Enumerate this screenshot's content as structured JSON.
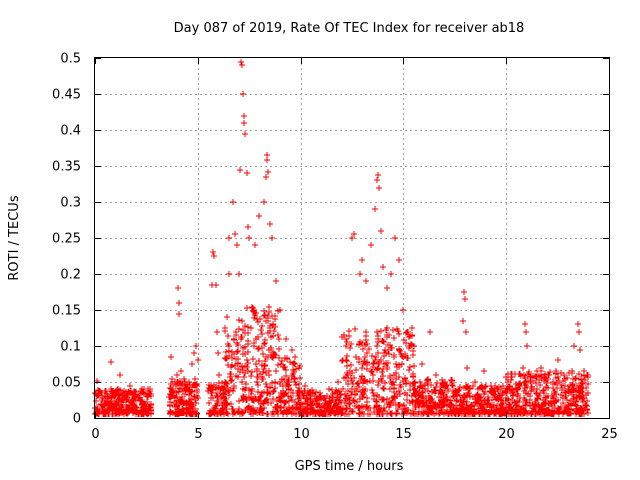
{
  "chart_data": {
    "type": "scatter",
    "title": "Day 087 of 2019, Rate Of TEC Index for receiver ab18",
    "xlabel": "GPS time / hours",
    "ylabel": "ROTI / TECUs",
    "xlim": [
      0,
      25
    ],
    "ylim": [
      0,
      0.5
    ],
    "xticks": [
      "0",
      "5",
      "10",
      "15",
      "20",
      "25"
    ],
    "yticks": [
      "0",
      "0.05",
      "0.1",
      "0.15",
      "0.2",
      "0.25",
      "0.3",
      "0.35",
      "0.4",
      "0.45",
      "0.5"
    ],
    "xtick_values": [
      0,
      5,
      10,
      15,
      20,
      25
    ],
    "ytick_values": [
      0,
      0.05,
      0.1,
      0.15,
      0.2,
      0.25,
      0.3,
      0.35,
      0.4,
      0.45,
      0.5
    ],
    "grid": true,
    "marker": "+",
    "color": "#ff0000",
    "series": [
      {
        "points": [
          [
            0.1,
            0.052
          ],
          [
            0.3,
            0.035
          ],
          [
            0.5,
            0.03
          ],
          [
            0.8,
            0.04
          ],
          [
            0.8,
            0.078
          ],
          [
            1.0,
            0.02
          ],
          [
            1.2,
            0.06
          ],
          [
            1.4,
            0.025
          ],
          [
            1.7,
            0.045
          ],
          [
            2.0,
            0.03
          ],
          [
            2.3,
            0.02
          ],
          [
            2.6,
            0.04
          ],
          [
            3.7,
            0.085
          ],
          [
            3.8,
            0.04
          ],
          [
            4.0,
            0.06
          ],
          [
            4.05,
            0.18
          ],
          [
            4.1,
            0.16
          ],
          [
            4.1,
            0.145
          ],
          [
            4.2,
            0.065
          ],
          [
            4.4,
            0.05
          ],
          [
            4.7,
            0.075
          ],
          [
            4.8,
            0.09
          ],
          [
            4.9,
            0.1
          ],
          [
            5.0,
            0.08
          ],
          [
            5.6,
            0.04
          ],
          [
            5.7,
            0.185
          ],
          [
            5.75,
            0.23
          ],
          [
            5.8,
            0.225
          ],
          [
            5.9,
            0.185
          ],
          [
            5.95,
            0.12
          ],
          [
            6.0,
            0.09
          ],
          [
            6.05,
            0.06
          ],
          [
            6.4,
            0.14
          ],
          [
            6.5,
            0.2
          ],
          [
            6.5,
            0.25
          ],
          [
            6.7,
            0.3
          ],
          [
            6.8,
            0.255
          ],
          [
            6.9,
            0.24
          ],
          [
            7.0,
            0.2
          ],
          [
            7.05,
            0.345
          ],
          [
            7.1,
            0.495
          ],
          [
            7.15,
            0.49
          ],
          [
            7.2,
            0.45
          ],
          [
            7.25,
            0.42
          ],
          [
            7.25,
            0.41
          ],
          [
            7.3,
            0.395
          ],
          [
            7.4,
            0.34
          ],
          [
            7.45,
            0.265
          ],
          [
            7.5,
            0.25
          ],
          [
            7.8,
            0.24
          ],
          [
            8.0,
            0.28
          ],
          [
            8.2,
            0.3
          ],
          [
            8.3,
            0.335
          ],
          [
            8.35,
            0.365
          ],
          [
            8.35,
            0.358
          ],
          [
            8.4,
            0.342
          ],
          [
            8.5,
            0.27
          ],
          [
            8.6,
            0.25
          ],
          [
            8.8,
            0.19
          ],
          [
            9.0,
            0.15
          ],
          [
            9.3,
            0.11
          ],
          [
            9.6,
            0.095
          ],
          [
            9.9,
            0.07
          ],
          [
            10.2,
            0.045
          ],
          [
            10.6,
            0.035
          ],
          [
            11.0,
            0.03
          ],
          [
            11.4,
            0.04
          ],
          [
            11.8,
            0.05
          ],
          [
            12.2,
            0.08
          ],
          [
            12.5,
            0.25
          ],
          [
            12.6,
            0.255
          ],
          [
            12.9,
            0.2
          ],
          [
            13.0,
            0.22
          ],
          [
            13.2,
            0.19
          ],
          [
            13.4,
            0.24
          ],
          [
            13.6,
            0.29
          ],
          [
            13.7,
            0.33
          ],
          [
            13.75,
            0.338
          ],
          [
            13.8,
            0.32
          ],
          [
            13.9,
            0.26
          ],
          [
            14.0,
            0.21
          ],
          [
            14.2,
            0.18
          ],
          [
            14.4,
            0.2
          ],
          [
            14.6,
            0.25
          ],
          [
            14.8,
            0.22
          ],
          [
            15.0,
            0.15
          ],
          [
            15.2,
            0.12
          ],
          [
            15.5,
            0.1
          ],
          [
            15.9,
            0.075
          ],
          [
            16.3,
            0.12
          ],
          [
            16.6,
            0.06
          ],
          [
            17.0,
            0.05
          ],
          [
            17.4,
            0.045
          ],
          [
            17.9,
            0.135
          ],
          [
            17.95,
            0.175
          ],
          [
            18.0,
            0.165
          ],
          [
            18.05,
            0.12
          ],
          [
            18.1,
            0.07
          ],
          [
            18.5,
            0.05
          ],
          [
            18.9,
            0.065
          ],
          [
            19.3,
            0.04
          ],
          [
            19.7,
            0.03
          ],
          [
            20.1,
            0.025
          ],
          [
            20.5,
            0.04
          ],
          [
            20.8,
            0.07
          ],
          [
            20.9,
            0.13
          ],
          [
            20.95,
            0.12
          ],
          [
            21.0,
            0.1
          ],
          [
            21.3,
            0.055
          ],
          [
            21.7,
            0.07
          ],
          [
            22.1,
            0.06
          ],
          [
            22.5,
            0.08
          ],
          [
            22.8,
            0.06
          ],
          [
            23.3,
            0.1
          ],
          [
            23.5,
            0.13
          ],
          [
            23.55,
            0.12
          ],
          [
            23.6,
            0.095
          ],
          [
            23.8,
            0.06
          ],
          [
            24.0,
            0.035
          ]
        ]
      }
    ]
  }
}
